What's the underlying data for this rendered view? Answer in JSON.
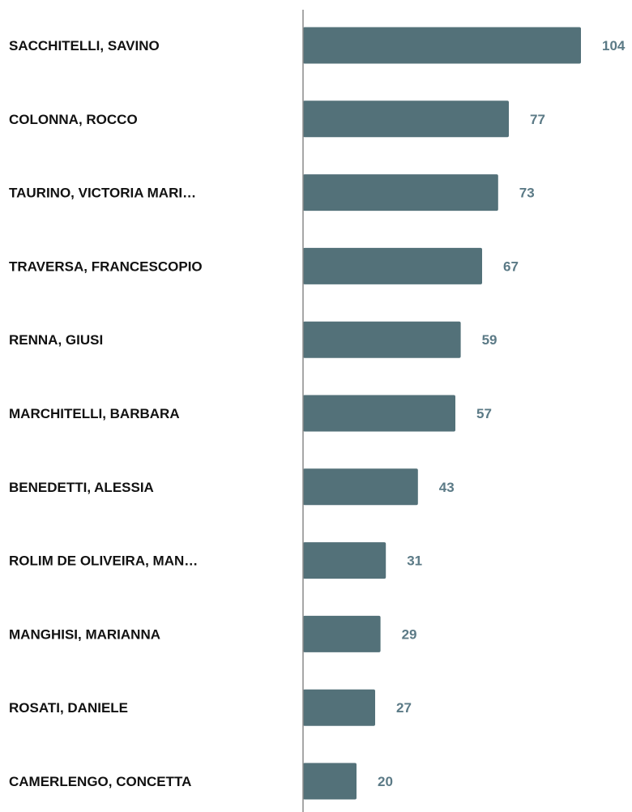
{
  "chart_data": {
    "type": "bar",
    "orientation": "horizontal",
    "categories": [
      "SACCHITELLI, SAVINO",
      "COLONNA, ROCCO",
      "TAURINO, VICTORIA MARI…",
      "TRAVERSA, FRANCESCOPIO",
      "RENNA, GIUSI",
      "MARCHITELLI, BARBARA",
      "BENEDETTI, ALESSIA",
      "ROLIM DE OLIVEIRA, MAN…",
      "MANGHISI, MARIANNA",
      "ROSATI, DANIELE",
      "CAMERLENGO, CONCETTA"
    ],
    "values": [
      104,
      77,
      73,
      67,
      59,
      57,
      43,
      31,
      29,
      27,
      20
    ],
    "xlim": [
      0,
      104
    ],
    "grid": false,
    "legend": "none",
    "data_labels": true
  },
  "colors": {
    "bar": "#537179",
    "value_label": "#5b7a86",
    "axis": "#8a8a8a",
    "category_label": "#111111"
  }
}
